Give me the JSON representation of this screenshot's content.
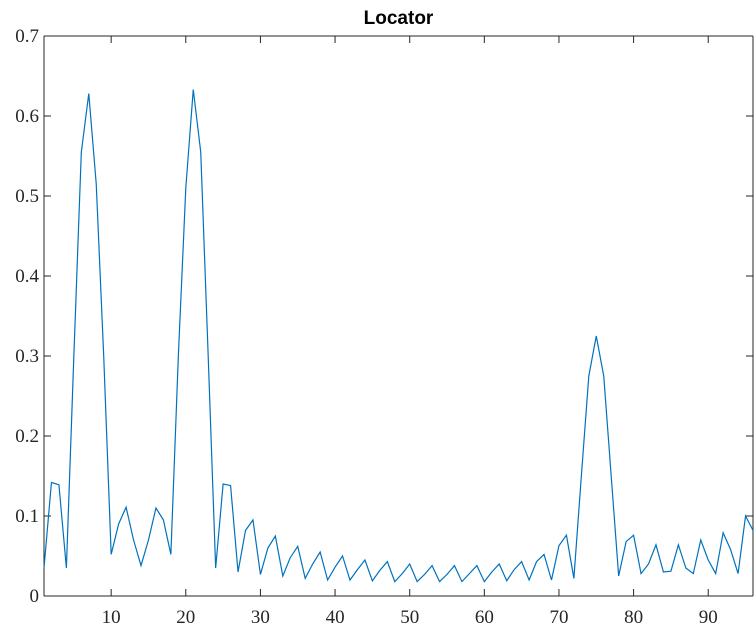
{
  "chart_data": {
    "type": "line",
    "title": "Locator",
    "xlabel": "",
    "ylabel": "",
    "xlim": [
      1,
      96
    ],
    "ylim": [
      0,
      0.7
    ],
    "xticks": [
      10,
      20,
      30,
      40,
      50,
      60,
      70,
      80,
      90
    ],
    "yticks": [
      0,
      0.1,
      0.2,
      0.3,
      0.4,
      0.5,
      0.6,
      0.7
    ],
    "xtick_labels": [
      "10",
      "20",
      "30",
      "40",
      "50",
      "60",
      "70",
      "80",
      "90"
    ],
    "ytick_labels": [
      "0",
      "0.1",
      "0.2",
      "0.3",
      "0.4",
      "0.5",
      "0.6",
      "0.7"
    ],
    "grid": false,
    "series": [
      {
        "color": "#0072bd",
        "x": [
          1,
          2,
          3,
          4,
          5,
          6,
          7,
          8,
          9,
          10,
          11,
          12,
          13,
          14,
          15,
          16,
          17,
          18,
          19,
          20,
          21,
          22,
          23,
          24,
          25,
          26,
          27,
          28,
          29,
          30,
          31,
          32,
          33,
          34,
          35,
          36,
          37,
          38,
          39,
          40,
          41,
          42,
          43,
          44,
          45,
          46,
          47,
          48,
          49,
          50,
          51,
          52,
          53,
          54,
          55,
          56,
          57,
          58,
          59,
          60,
          61,
          62,
          63,
          64,
          65,
          66,
          67,
          68,
          69,
          70,
          71,
          72,
          73,
          74,
          75,
          76,
          77,
          78,
          79,
          80,
          81,
          82,
          83,
          84,
          85,
          86,
          87,
          88,
          89,
          90,
          91,
          92,
          93,
          94,
          95,
          96
        ],
        "y": [
          0.035,
          0.142,
          0.139,
          0.035,
          0.3,
          0.555,
          0.628,
          0.515,
          0.3,
          0.052,
          0.09,
          0.111,
          0.07,
          0.038,
          0.07,
          0.11,
          0.095,
          0.052,
          0.3,
          0.51,
          0.633,
          0.555,
          0.3,
          0.035,
          0.14,
          0.138,
          0.03,
          0.082,
          0.095,
          0.027,
          0.06,
          0.075,
          0.025,
          0.048,
          0.062,
          0.022,
          0.04,
          0.055,
          0.02,
          0.036,
          0.05,
          0.02,
          0.033,
          0.045,
          0.019,
          0.032,
          0.043,
          0.018,
          0.028,
          0.04,
          0.018,
          0.027,
          0.038,
          0.018,
          0.027,
          0.038,
          0.018,
          0.028,
          0.038,
          0.018,
          0.03,
          0.04,
          0.019,
          0.033,
          0.043,
          0.02,
          0.043,
          0.052,
          0.02,
          0.063,
          0.076,
          0.022,
          0.15,
          0.275,
          0.325,
          0.275,
          0.15,
          0.025,
          0.068,
          0.076,
          0.028,
          0.04,
          0.064,
          0.03,
          0.031,
          0.064,
          0.035,
          0.028,
          0.07,
          0.045,
          0.028,
          0.079,
          0.058,
          0.028,
          0.1,
          0.082
        ]
      }
    ]
  }
}
